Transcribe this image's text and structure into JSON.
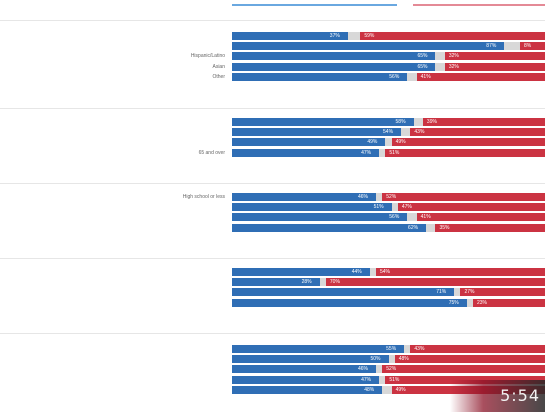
{
  "chart_data": {
    "type": "bar",
    "stacked": "diverging-100",
    "colors": {
      "blue": "#2f6eb5",
      "red": "#cb3342",
      "gap": "#d8d8d8"
    },
    "groups": [
      {
        "label": "",
        "rows": [
          {
            "label": "",
            "blue": 37,
            "red": 59,
            "blue_label": "37%",
            "red_label": "59%"
          },
          {
            "label": "",
            "blue": 87,
            "red": 8,
            "blue_label": "87%",
            "red_label": "8%"
          },
          {
            "label": "Hispanic/Latino",
            "blue": 65,
            "red": 32,
            "blue_label": "65%",
            "red_label": "32%"
          },
          {
            "label": "Asian",
            "blue": 65,
            "red": 32,
            "blue_label": "65%",
            "red_label": "32%"
          },
          {
            "label": "Other",
            "blue": 56,
            "red": 41,
            "blue_label": "56%",
            "red_label": "41%"
          }
        ]
      },
      {
        "label": "",
        "rows": [
          {
            "label": "",
            "blue": 58,
            "red": 39,
            "blue_label": "58%",
            "red_label": "39%"
          },
          {
            "label": "",
            "blue": 54,
            "red": 43,
            "blue_label": "54%",
            "red_label": "43%"
          },
          {
            "label": "",
            "blue": 49,
            "red": 49,
            "blue_label": "49%",
            "red_label": "49%"
          },
          {
            "label": "65 and over",
            "blue": 47,
            "red": 51,
            "blue_label": "47%",
            "red_label": "51%"
          }
        ]
      },
      {
        "label": "",
        "rows": [
          {
            "label": "High school or less",
            "blue": 46,
            "red": 52,
            "blue_label": "46%",
            "red_label": "52%"
          },
          {
            "label": "",
            "blue": 51,
            "red": 47,
            "blue_label": "51%",
            "red_label": "47%"
          },
          {
            "label": "",
            "blue": 56,
            "red": 41,
            "blue_label": "56%",
            "red_label": "41%"
          },
          {
            "label": "",
            "blue": 62,
            "red": 35,
            "blue_label": "62%",
            "red_label": "35%"
          }
        ]
      },
      {
        "label": "",
        "rows": [
          {
            "label": "",
            "blue": 44,
            "red": 54,
            "blue_label": "44%",
            "red_label": "54%"
          },
          {
            "label": "",
            "blue": 28,
            "red": 70,
            "blue_label": "28%",
            "red_label": "70%"
          },
          {
            "label": "",
            "blue": 71,
            "red": 27,
            "blue_label": "71%",
            "red_label": "27%"
          },
          {
            "label": "",
            "blue": 75,
            "red": 23,
            "blue_label": "75%",
            "red_label": "23%"
          }
        ]
      },
      {
        "label": "",
        "rows": [
          {
            "label": "",
            "blue": 55,
            "red": 43,
            "blue_label": "55%",
            "red_label": "43%"
          },
          {
            "label": "",
            "blue": 50,
            "red": 48,
            "blue_label": "50%",
            "red_label": "48%"
          },
          {
            "label": "",
            "blue": 46,
            "red": 52,
            "blue_label": "46%",
            "red_label": "52%"
          },
          {
            "label": "",
            "blue": 47,
            "red": 51,
            "blue_label": "47%",
            "red_label": "51%"
          },
          {
            "label": "",
            "blue": 48,
            "red": 49,
            "blue_label": "48%",
            "red_label": "49%"
          }
        ]
      }
    ]
  },
  "video": {
    "timer": "5:54"
  }
}
